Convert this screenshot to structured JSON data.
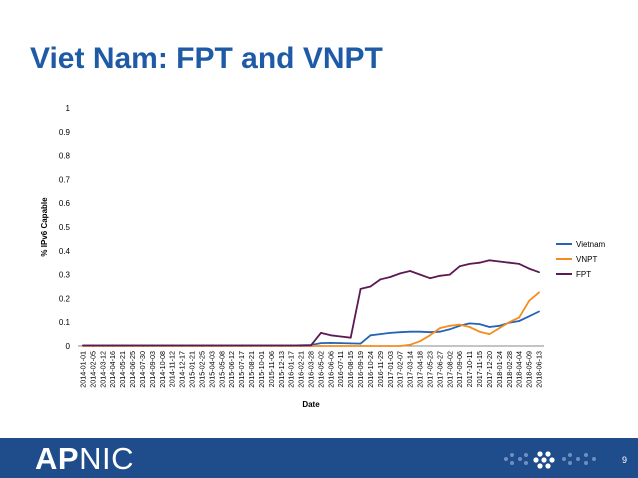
{
  "slide": {
    "title": "Viet Nam: FPT and VNPT",
    "page_number": "9",
    "logo_bold": "AP",
    "logo_regular": "NIC"
  },
  "colors": {
    "title": "#1f5aa6",
    "footer": "#1f4c8b",
    "Vietnam": "#2463b5",
    "VNPT": "#f48c1e",
    "FPT": "#5c1a55"
  },
  "chart_data": {
    "type": "line",
    "xlabel": "Date",
    "ylabel": "% IPv6 Capable",
    "ylim": [
      0,
      1
    ],
    "yticks": [
      "0",
      "0.1",
      "0.2",
      "0.3",
      "0.4",
      "0.5",
      "0.6",
      "0.7",
      "0.8",
      "0.9",
      "1"
    ],
    "x": [
      "2014-01-01",
      "2014-02-05",
      "2014-03-12",
      "2014-04-16",
      "2014-05-21",
      "2014-06-25",
      "2014-07-30",
      "2014-09-03",
      "2014-10-08",
      "2014-11-12",
      "2014-12-17",
      "2015-01-21",
      "2015-02-25",
      "2015-04-03",
      "2015-05-08",
      "2015-06-12",
      "2015-07-17",
      "2015-08-21",
      "2015-10-01",
      "2015-11-06",
      "2015-12-13",
      "2016-01-17",
      "2016-02-21",
      "2016-03-28",
      "2016-05-02",
      "2016-06-06",
      "2016-07-11",
      "2016-08-15",
      "2016-09-19",
      "2016-10-24",
      "2016-11-29",
      "2017-01-03",
      "2017-02-07",
      "2017-03-14",
      "2017-04-18",
      "2017-05-23",
      "2017-06-27",
      "2017-08-02",
      "2017-09-06",
      "2017-10-11",
      "2017-11-15",
      "2017-12-20",
      "2018-01-24",
      "2018-02-28",
      "2018-04-04",
      "2018-05-09",
      "2018-06-13"
    ],
    "legend_position": "right",
    "series": [
      {
        "name": "Vietnam",
        "values": [
          0.002,
          0.002,
          0.002,
          0.002,
          0.002,
          0.002,
          0.002,
          0.002,
          0.002,
          0.002,
          0.002,
          0.002,
          0.002,
          0.002,
          0.002,
          0.002,
          0.002,
          0.002,
          0.002,
          0.002,
          0.002,
          0.002,
          0.003,
          0.004,
          0.012,
          0.013,
          0.012,
          0.011,
          0.01,
          0.045,
          0.05,
          0.055,
          0.058,
          0.06,
          0.06,
          0.058,
          0.06,
          0.07,
          0.085,
          0.095,
          0.092,
          0.08,
          0.085,
          0.098,
          0.105,
          0.125,
          0.145
        ]
      },
      {
        "name": "VNPT",
        "values": [
          0.0,
          0.0,
          0.0,
          0.0,
          0.0,
          0.0,
          0.0,
          0.0,
          0.0,
          0.0,
          0.0,
          0.0,
          0.0,
          0.0,
          0.0,
          0.0,
          0.0,
          0.0,
          0.0,
          0.0,
          0.0,
          0.0,
          0.0,
          0.0,
          0.0,
          0.0,
          0.0,
          0.0,
          0.0,
          0.0,
          0.0,
          0.0,
          0.0,
          0.005,
          0.02,
          0.045,
          0.075,
          0.085,
          0.09,
          0.08,
          0.06,
          0.05,
          0.075,
          0.1,
          0.12,
          0.19,
          0.225
        ]
      },
      {
        "name": "FPT",
        "values": [
          0.002,
          0.002,
          0.002,
          0.002,
          0.002,
          0.002,
          0.002,
          0.002,
          0.002,
          0.002,
          0.002,
          0.002,
          0.002,
          0.002,
          0.002,
          0.002,
          0.002,
          0.002,
          0.002,
          0.002,
          0.002,
          0.002,
          0.002,
          0.003,
          0.055,
          0.045,
          0.04,
          0.035,
          0.24,
          0.25,
          0.28,
          0.29,
          0.305,
          0.315,
          0.3,
          0.285,
          0.295,
          0.3,
          0.335,
          0.345,
          0.35,
          0.36,
          0.355,
          0.35,
          0.345,
          0.325,
          0.31
        ]
      }
    ]
  }
}
